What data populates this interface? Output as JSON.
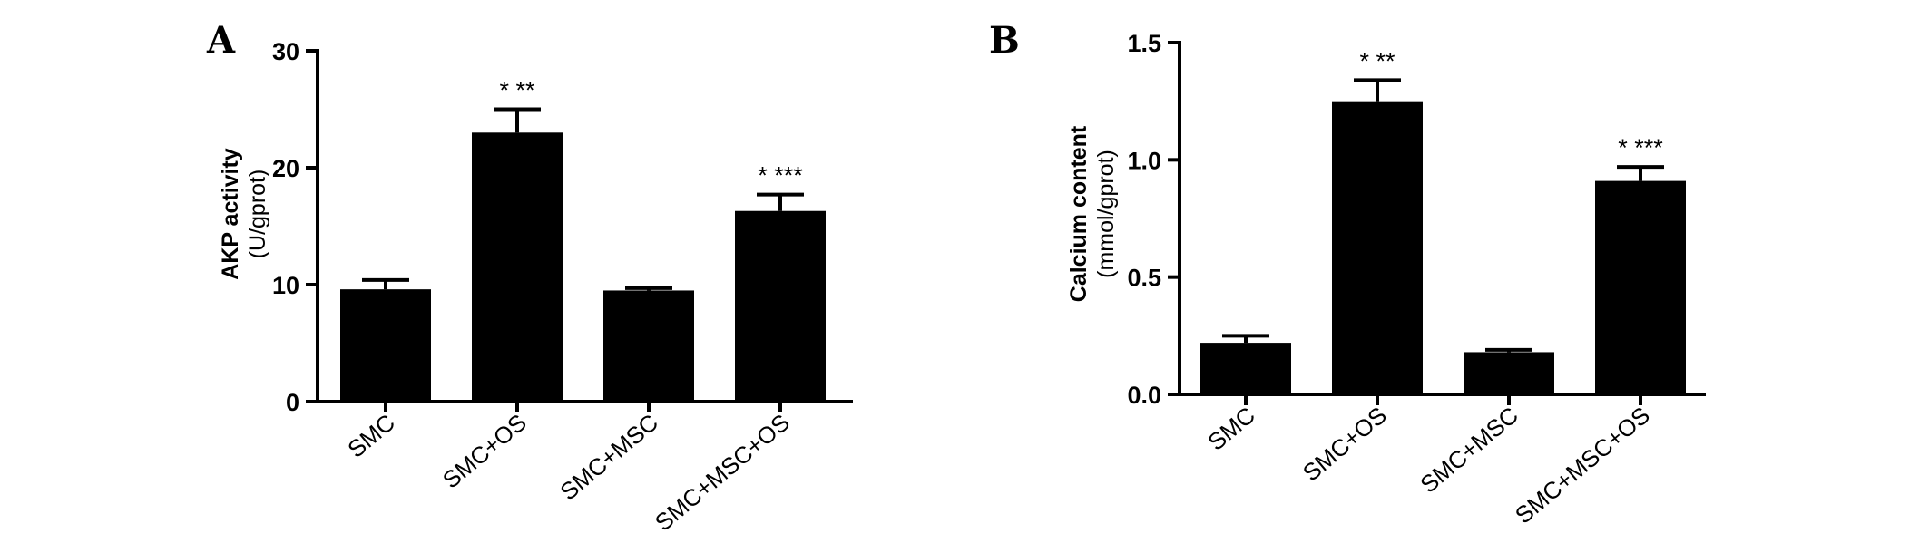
{
  "chart_data": [
    {
      "type": "bar",
      "panel_label": "A",
      "ylabel": "AKP activity",
      "ylabel_unit": "(U/gprot)",
      "categories": [
        "SMC",
        "SMC+OS",
        "SMC+MSC",
        "SMC+MSC+OS"
      ],
      "values": [
        9.6,
        23.0,
        9.5,
        16.3
      ],
      "errors": [
        0.8,
        2.0,
        0.2,
        1.4
      ],
      "significance": [
        "",
        "* **",
        "",
        "* ***"
      ],
      "ylim": [
        0,
        30
      ],
      "yticks": [
        0,
        10,
        20,
        30
      ],
      "ytick_labels": [
        "0",
        "10",
        "20",
        "30"
      ],
      "grid": false,
      "bar_color": "#000000"
    },
    {
      "type": "bar",
      "panel_label": "B",
      "ylabel": "Calcium content",
      "ylabel_unit": "(mmol/gprot)",
      "categories": [
        "SMC",
        "SMC+OS",
        "SMC+MSC",
        "SMC+MSC+OS"
      ],
      "values": [
        0.22,
        1.25,
        0.18,
        0.91
      ],
      "errors": [
        0.03,
        0.09,
        0.01,
        0.06
      ],
      "significance": [
        "",
        "* **",
        "",
        "* ***"
      ],
      "ylim": [
        0,
        1.5
      ],
      "yticks": [
        0,
        0.5,
        1.0,
        1.5
      ],
      "ytick_labels": [
        "0.0",
        "0.5",
        "1.0",
        "1.5"
      ],
      "grid": false,
      "bar_color": "#000000"
    }
  ]
}
